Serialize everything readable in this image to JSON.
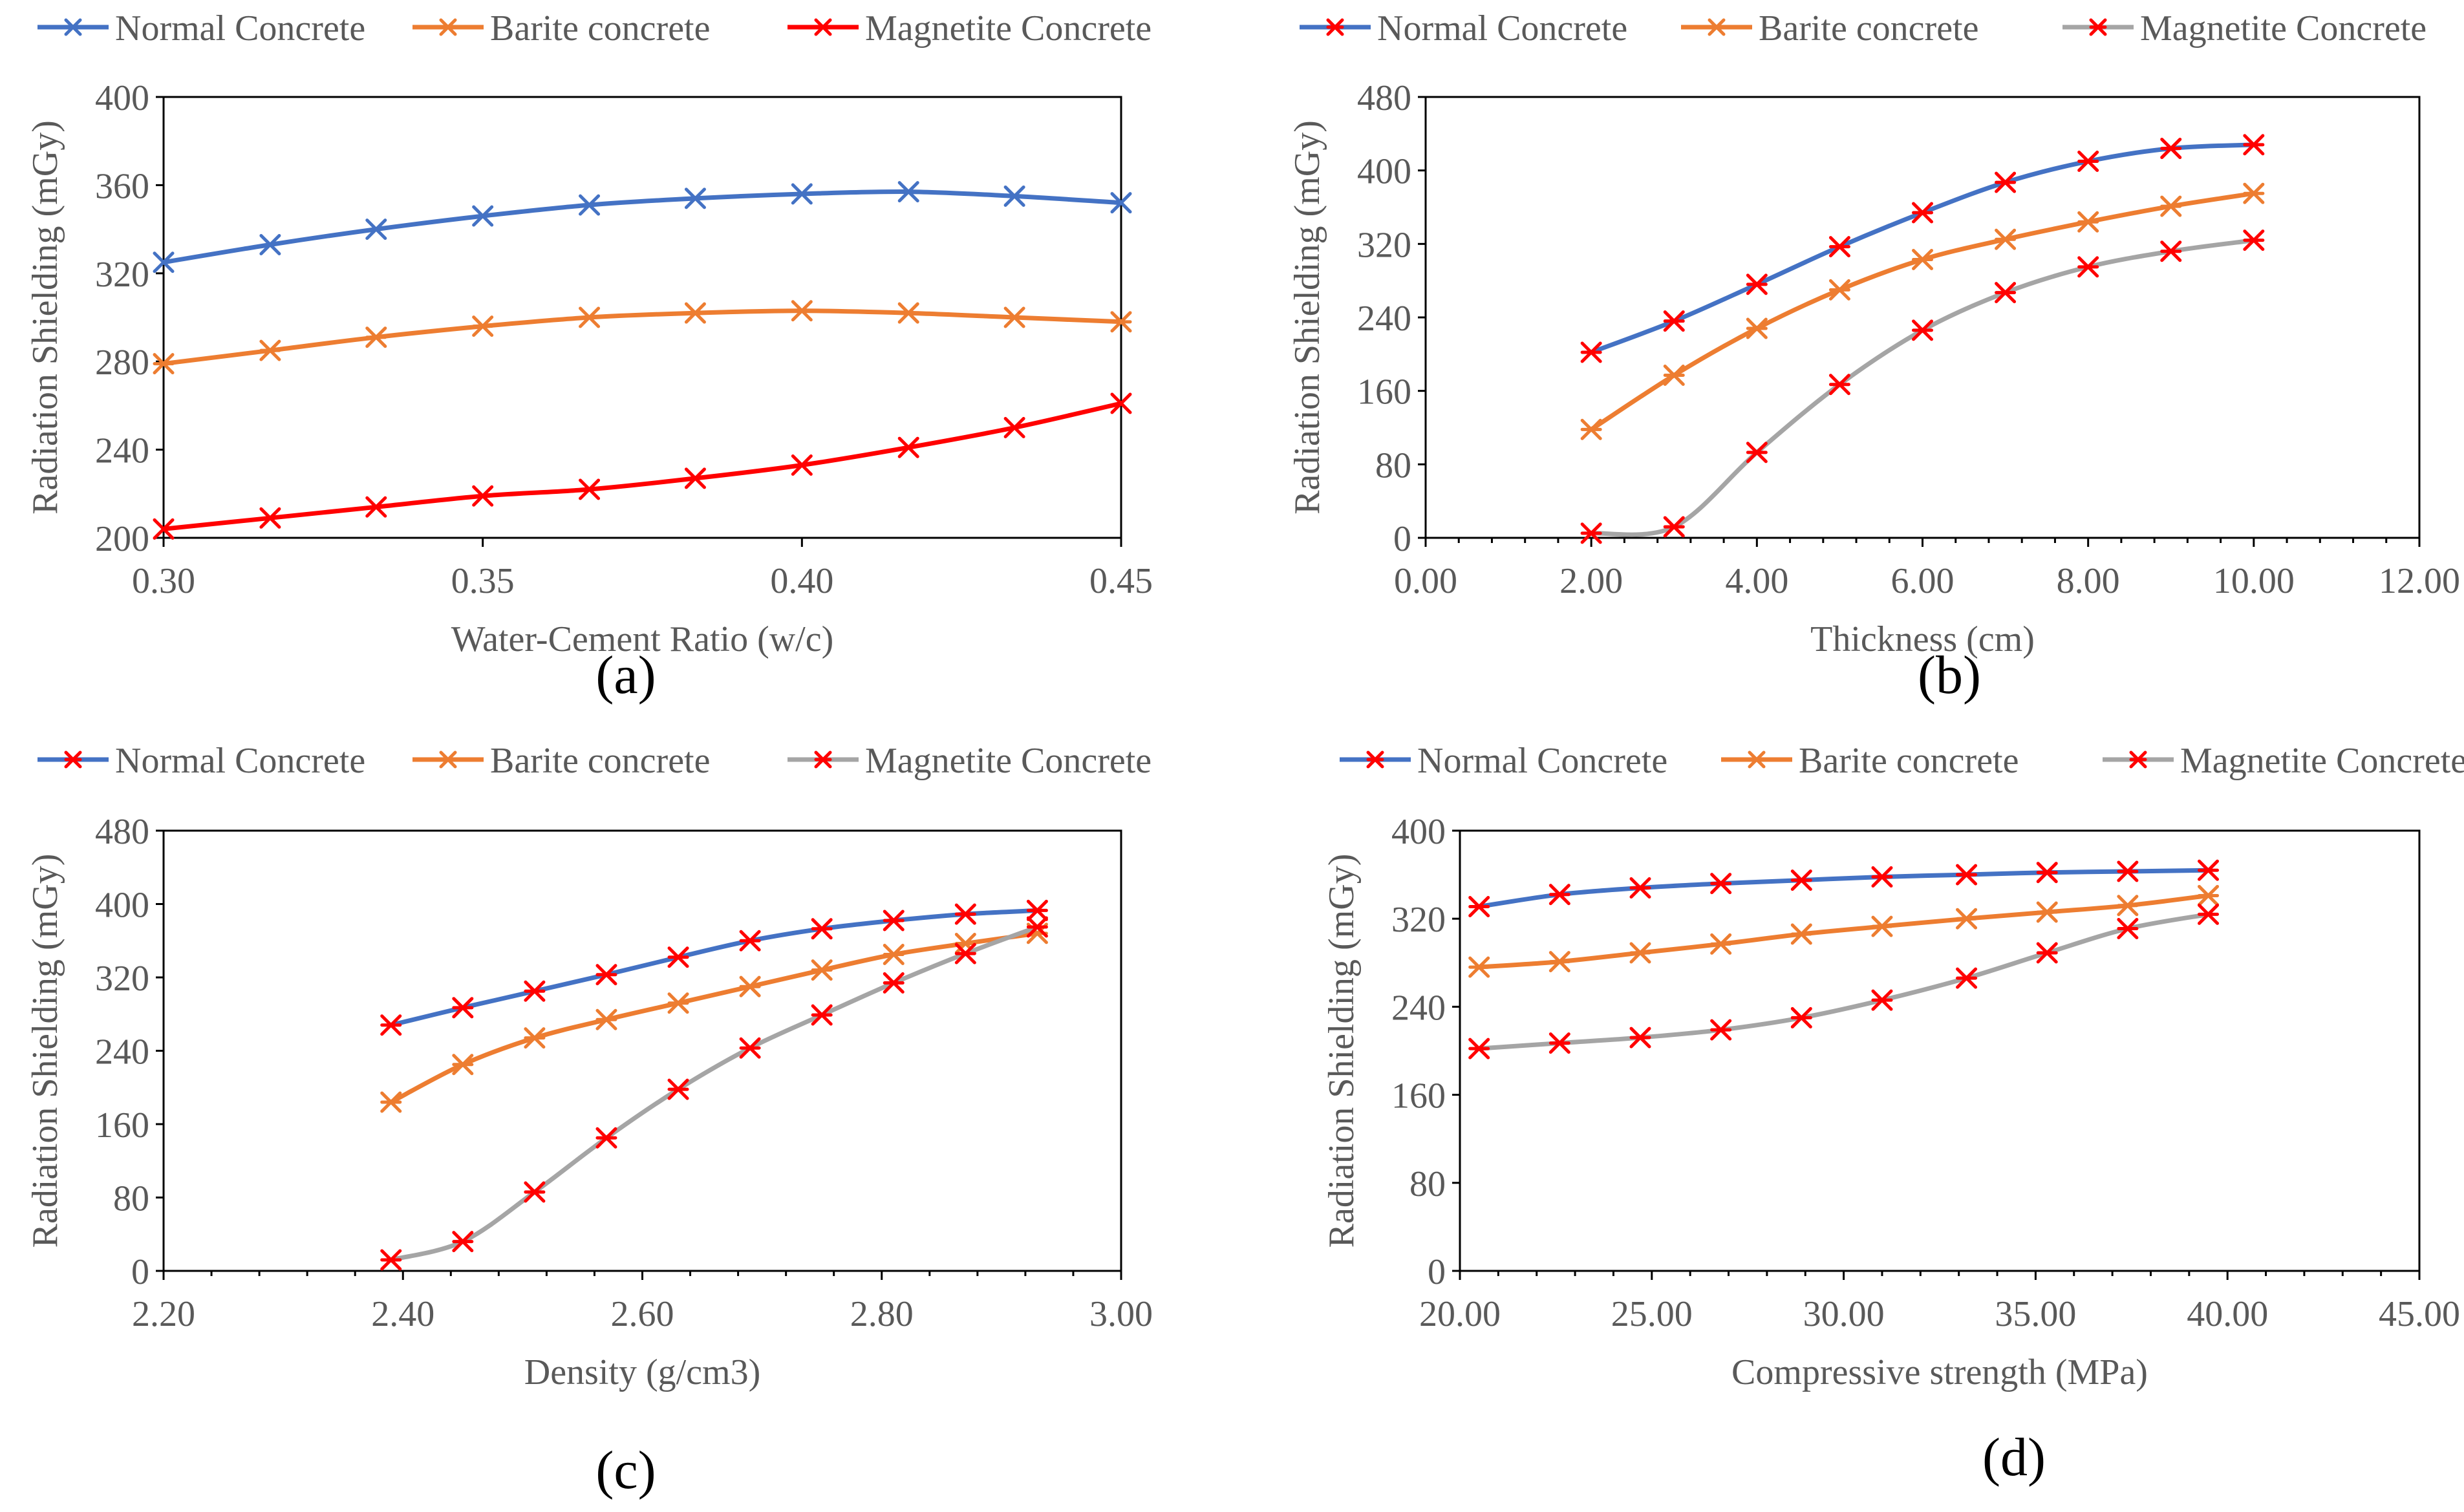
{
  "figure": {
    "panels": [
      "(a)",
      "(b)",
      "(c)",
      "(d)"
    ]
  },
  "colors": {
    "normal": "#4472c4",
    "barite": "#ed7d31",
    "magnetite_red": "#ff0000",
    "magnetite_gray": "#a5a5a5",
    "marker_red": "#ff0000",
    "axis": "#000000",
    "text": "#595959"
  },
  "chart_data": [
    {
      "type": "line",
      "panel": "(a)",
      "legend": [
        "Normal Concrete",
        "Barite concrete",
        "Magnetite Concrete"
      ],
      "xlabel": "Water-Cement Ratio (w/c)",
      "ylabel": "Radiation Shielding (mGy)",
      "xlim": [
        0.3,
        0.45
      ],
      "ylim": [
        200,
        400
      ],
      "xticks": [
        0.3,
        0.35,
        0.4,
        0.45
      ],
      "xtick_labels": [
        "0.30",
        "0.35",
        "0.40",
        "0.45"
      ],
      "yticks": [
        200,
        240,
        280,
        320,
        360,
        400
      ],
      "ytick_labels": [
        "200",
        "240",
        "280",
        "320",
        "360",
        "400"
      ],
      "x": [
        0.3,
        0.3167,
        0.3333,
        0.35,
        0.3667,
        0.3833,
        0.4,
        0.4167,
        0.4333,
        0.45
      ],
      "series": [
        {
          "name": "Normal Concrete",
          "values": [
            325,
            333,
            340,
            346,
            351,
            354,
            356,
            357,
            355,
            352
          ]
        },
        {
          "name": "Barite concrete",
          "values": [
            279,
            285,
            291,
            296,
            300,
            302,
            303,
            302,
            300,
            298
          ]
        },
        {
          "name": "Magnetite Concrete",
          "values": [
            204,
            209,
            214,
            219,
            222,
            227,
            233,
            241,
            250,
            261
          ]
        }
      ]
    },
    {
      "type": "line",
      "panel": "(b)",
      "legend": [
        "Normal Concrete",
        "Barite concrete",
        "Magnetite Concrete"
      ],
      "xlabel": "Thickness (cm)",
      "ylabel": "Radiation Shielding (mGy)",
      "xlim": [
        0,
        12
      ],
      "ylim": [
        0,
        480
      ],
      "xticks": [
        0,
        2,
        4,
        6,
        8,
        10,
        12
      ],
      "xtick_labels": [
        "0.00",
        "2.00",
        "4.00",
        "6.00",
        "8.00",
        "10.00",
        "12.00"
      ],
      "yticks": [
        0,
        80,
        160,
        240,
        320,
        400,
        480
      ],
      "ytick_labels": [
        "0",
        "80",
        "160",
        "240",
        "320",
        "400",
        "480"
      ],
      "x": [
        2,
        3,
        4,
        5,
        6,
        7,
        8,
        9,
        10
      ],
      "series": [
        {
          "name": "Normal Concrete",
          "values": [
            202,
            236,
            276,
            317,
            354,
            387,
            410,
            424,
            428
          ]
        },
        {
          "name": "Barite concrete",
          "values": [
            118,
            177,
            228,
            270,
            303,
            325,
            344,
            361,
            375
          ]
        },
        {
          "name": "Magnetite Concrete",
          "values": [
            5,
            12,
            93,
            167,
            226,
            267,
            295,
            312,
            324
          ]
        }
      ]
    },
    {
      "type": "line",
      "panel": "(c)",
      "legend": [
        "Normal Concrete",
        "Barite concrete",
        "Magnetite Concrete"
      ],
      "xlabel": "Density (g/cm3)",
      "ylabel": "Radiation Shielding (mGy)",
      "xlim": [
        2.2,
        3.0
      ],
      "ylim": [
        0,
        480
      ],
      "xticks": [
        2.2,
        2.4,
        2.6,
        2.8,
        3.0
      ],
      "xtick_labels": [
        "2.20",
        "2.40",
        "2.60",
        "2.80",
        "3.00"
      ],
      "yticks": [
        0,
        80,
        160,
        240,
        320,
        400,
        480
      ],
      "ytick_labels": [
        "0",
        "80",
        "160",
        "240",
        "320",
        "400",
        "480"
      ],
      "x": [
        2.39,
        2.45,
        2.51,
        2.57,
        2.63,
        2.69,
        2.75,
        2.81,
        2.87,
        2.93
      ],
      "series": [
        {
          "name": "Normal Concrete",
          "values": [
            268,
            287,
            305,
            323,
            342,
            360,
            373,
            382,
            389,
            393
          ]
        },
        {
          "name": "Barite concrete",
          "values": [
            184,
            225,
            254,
            274,
            292,
            310,
            328,
            345,
            357,
            368
          ]
        },
        {
          "name": "Magnetite Concrete",
          "values": [
            12,
            32,
            86,
            145,
            198,
            243,
            279,
            314,
            346,
            375
          ]
        }
      ]
    },
    {
      "type": "line",
      "panel": "(d)",
      "legend": [
        "Normal Concrete",
        "Barite concrete",
        "Magnetite Concrete"
      ],
      "xlabel": "Compressive strength (MPa)",
      "ylabel": "Radiation Shielding (mGy)",
      "xlim": [
        20,
        45
      ],
      "ylim": [
        0,
        400
      ],
      "xticks": [
        20,
        25,
        30,
        35,
        40,
        45
      ],
      "xtick_labels": [
        "20.00",
        "25.00",
        "30.00",
        "35.00",
        "40.00",
        "45.00"
      ],
      "yticks": [
        0,
        80,
        160,
        240,
        320,
        400
      ],
      "ytick_labels": [
        "0",
        "80",
        "160",
        "240",
        "320",
        "400"
      ],
      "x": [
        20.5,
        22.6,
        24.7,
        26.8,
        28.9,
        31.0,
        33.2,
        35.3,
        37.4,
        39.5
      ],
      "series": [
        {
          "name": "Normal Concrete",
          "values": [
            331,
            342,
            348,
            352,
            355,
            358,
            360,
            362,
            363,
            364
          ]
        },
        {
          "name": "Barite concrete",
          "values": [
            276,
            281,
            289,
            297,
            306,
            313,
            320,
            326,
            332,
            341
          ]
        },
        {
          "name": "Magnetite Concrete",
          "values": [
            202,
            207,
            212,
            219,
            230,
            246,
            266,
            289,
            311,
            324
          ]
        }
      ]
    }
  ]
}
